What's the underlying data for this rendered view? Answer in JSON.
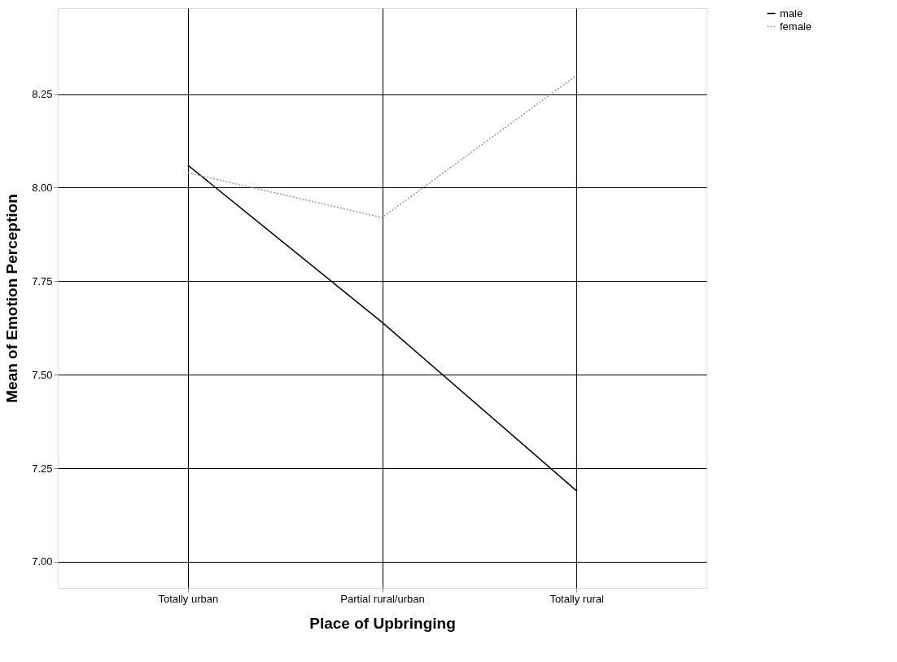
{
  "chart_data": {
    "type": "line",
    "xlabel": "Place of Upbringing",
    "ylabel": "Mean of Emotion Perception",
    "categories": [
      "Totally urban",
      "Partial rural/urban",
      "Totally rural"
    ],
    "series": [
      {
        "name": "male",
        "color": "#000000",
        "values": [
          8.06,
          7.64,
          7.19
        ],
        "line_style": "solid"
      },
      {
        "name": "female",
        "color": "#999999",
        "values": [
          8.04,
          7.92,
          8.3
        ],
        "line_style": "dotted"
      }
    ],
    "ylim": [
      6.93,
      8.48
    ],
    "yticks": [
      {
        "value": 7.0,
        "label": "7.00"
      },
      7.25,
      {
        "value": 7.5,
        "label": "7.50"
      },
      7.75,
      {
        "value": 8.0,
        "label": "8.00"
      },
      8.25
    ],
    "grid": true,
    "legend": "top right",
    "marker": "none"
  }
}
